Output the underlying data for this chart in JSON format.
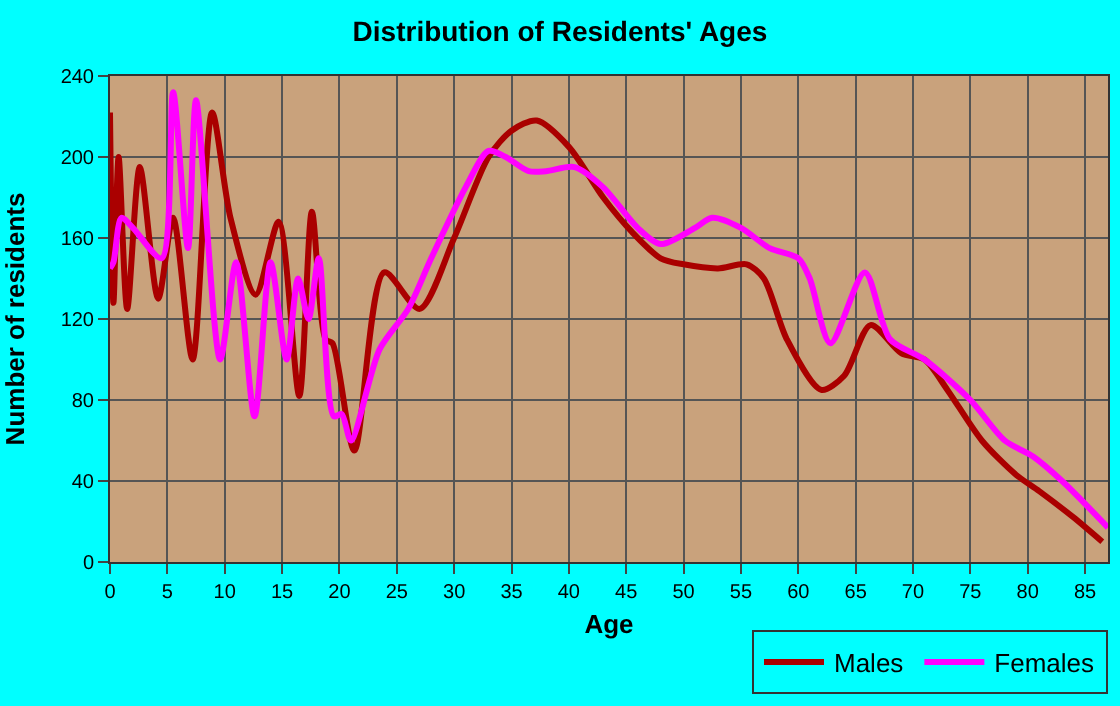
{
  "chart_data": {
    "type": "line",
    "title": "Distribution of Residents' Ages",
    "xlabel": "Age",
    "ylabel": "Number of residents",
    "xlim": [
      0,
      87
    ],
    "xticks": [
      0,
      5,
      10,
      15,
      20,
      25,
      30,
      35,
      40,
      45,
      50,
      55,
      60,
      65,
      70,
      75,
      80,
      85
    ],
    "ylim": [
      0,
      240
    ],
    "yticks": [
      0,
      40,
      80,
      120,
      160,
      200,
      240
    ],
    "grid": true,
    "legend": "bottom right",
    "marker": "none",
    "line_style": "solid",
    "series": [
      {
        "name": "Males",
        "color": "#aa0000",
        "x": [
          0,
          0.3,
          0.75,
          1.5,
          2.6,
          4.2,
          5.5,
          7.2,
          8.9,
          10.5,
          12.7,
          14.7,
          16.5,
          17.6,
          18.8,
          19.4,
          21.3,
          23.9,
          27,
          30,
          33,
          35,
          37.2,
          40,
          43,
          45.5,
          48,
          50,
          53,
          55.5,
          57,
          59,
          62,
          64,
          66.3,
          69,
          71,
          73,
          76,
          79,
          81,
          84,
          86.5
        ],
        "values": [
          222,
          128,
          200,
          125,
          195,
          130,
          170,
          100,
          222,
          170,
          132,
          168,
          82,
          173,
          110,
          108,
          55,
          143,
          125,
          160,
          200,
          213,
          218,
          205,
          180,
          163,
          150,
          147,
          145,
          147,
          140,
          110,
          85,
          92,
          117,
          103,
          100,
          85,
          60,
          43,
          35,
          22,
          10
        ]
      },
      {
        "name": "Females",
        "color": "#ff00ff",
        "x": [
          0,
          0.3,
          1,
          2,
          4.5,
          5.5,
          6.8,
          7.5,
          9.6,
          11,
          12.6,
          14,
          15.4,
          16.4,
          17.3,
          18.2,
          19.5,
          20.2,
          21,
          23.5,
          26,
          28,
          31,
          33,
          34.5,
          36.5,
          38,
          40.5,
          43,
          46,
          48,
          51,
          52.5,
          55,
          57.5,
          60,
          61,
          62.8,
          65.8,
          68,
          71,
          75,
          78,
          80.5,
          83,
          87
        ],
        "values": [
          145,
          148,
          170,
          165,
          150,
          232,
          155,
          228,
          100,
          148,
          72,
          148,
          100,
          140,
          120,
          150,
          72,
          73,
          60,
          105,
          125,
          150,
          185,
          203,
          200,
          193,
          193,
          195,
          185,
          165,
          157,
          165,
          170,
          165,
          155,
          150,
          140,
          108,
          143,
          110,
          100,
          80,
          60,
          52,
          40,
          17
        ]
      }
    ]
  }
}
